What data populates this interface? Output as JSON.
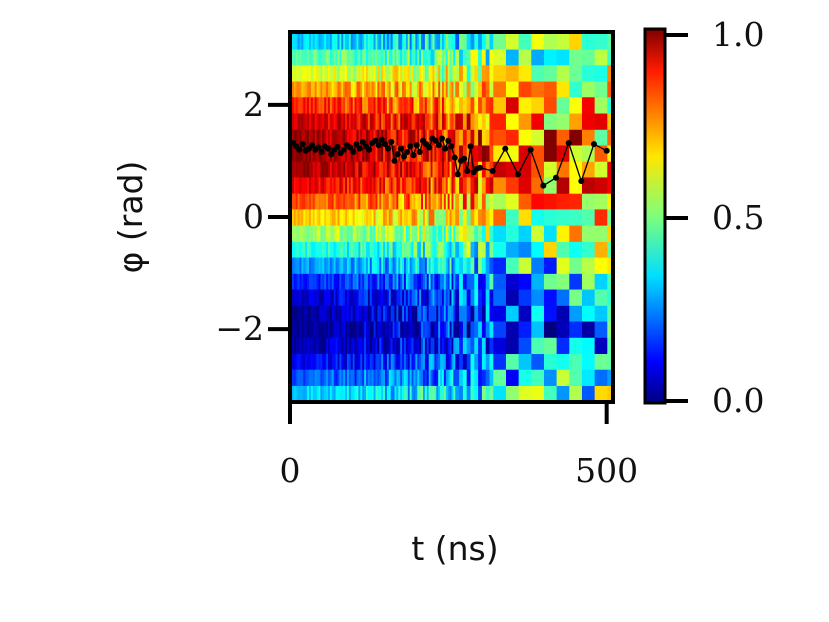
{
  "chart_data": {
    "type": "heatmap",
    "xlabel": "t (ns)",
    "ylabel": "φ (rad)",
    "xlim": [
      0,
      510
    ],
    "ylim": [
      -3.3,
      3.3
    ],
    "xticks": [
      0,
      500
    ],
    "xtick_labels": [
      "0",
      "500"
    ],
    "yticks": [
      2,
      0,
      -2
    ],
    "ytick_labels": [
      "2",
      "0",
      "−2"
    ],
    "colorbar": {
      "range": [
        0,
        1
      ],
      "ticks": [
        0,
        0.5,
        1
      ],
      "tick_labels": [
        "0.0",
        "0.5",
        "1.0"
      ],
      "colormap": "jet"
    },
    "heatmap_profile": {
      "description_free_values": true,
      "phi_rows": [
        -3.14,
        -2.86,
        -2.57,
        -2.29,
        -2.0,
        -1.71,
        -1.43,
        -1.14,
        -0.86,
        -0.57,
        -0.29,
        0.0,
        0.29,
        0.57,
        0.86,
        1.14,
        1.43,
        1.71,
        2.0,
        2.29,
        2.57,
        2.86,
        3.14
      ],
      "peak_phi": 1.2,
      "contrast_early": 1.0,
      "contrast_late": 0.45
    },
    "series": [
      {
        "type": "line",
        "color": "#000000",
        "points": [
          [
            5,
            1.32
          ],
          [
            10,
            1.26
          ],
          [
            15,
            1.2
          ],
          [
            20,
            1.3
          ],
          [
            25,
            1.18
          ],
          [
            30,
            1.22
          ],
          [
            35,
            1.28
          ],
          [
            40,
            1.2
          ],
          [
            45,
            1.24
          ],
          [
            50,
            1.16
          ],
          [
            55,
            1.26
          ],
          [
            60,
            1.22
          ],
          [
            65,
            1.12
          ],
          [
            70,
            1.2
          ],
          [
            75,
            1.25
          ],
          [
            80,
            1.14
          ],
          [
            85,
            1.2
          ],
          [
            90,
            1.28
          ],
          [
            95,
            1.24
          ],
          [
            100,
            1.16
          ],
          [
            105,
            1.3
          ],
          [
            110,
            1.22
          ],
          [
            115,
            1.34
          ],
          [
            120,
            1.26
          ],
          [
            125,
            1.2
          ],
          [
            130,
            1.32
          ],
          [
            135,
            1.36
          ],
          [
            140,
            1.28
          ],
          [
            145,
            1.38
          ],
          [
            150,
            1.3
          ],
          [
            155,
            1.22
          ],
          [
            160,
            1.34
          ],
          [
            165,
            1.0
          ],
          [
            170,
            1.12
          ],
          [
            175,
            1.22
          ],
          [
            180,
            1.08
          ],
          [
            185,
            1.16
          ],
          [
            190,
            1.26
          ],
          [
            195,
            1.1
          ],
          [
            200,
            1.28
          ],
          [
            205,
            1.16
          ],
          [
            210,
            1.36
          ],
          [
            215,
            1.3
          ],
          [
            220,
            1.24
          ],
          [
            225,
            1.4
          ],
          [
            230,
            1.36
          ],
          [
            235,
            1.28
          ],
          [
            240,
            1.4
          ],
          [
            245,
            1.22
          ],
          [
            250,
            1.36
          ],
          [
            255,
            1.26
          ],
          [
            260,
            1.06
          ],
          [
            265,
            0.76
          ],
          [
            270,
            1.0
          ],
          [
            275,
            1.04
          ],
          [
            280,
            0.82
          ],
          [
            285,
            1.26
          ],
          [
            290,
            0.8
          ],
          [
            295,
            0.86
          ],
          [
            300,
            0.88
          ],
          [
            320,
            0.82
          ],
          [
            340,
            1.22
          ],
          [
            360,
            0.76
          ],
          [
            380,
            1.2
          ],
          [
            400,
            0.56
          ],
          [
            420,
            0.7
          ],
          [
            440,
            1.32
          ],
          [
            460,
            0.64
          ],
          [
            480,
            1.3
          ],
          [
            500,
            1.18
          ]
        ]
      }
    ]
  }
}
